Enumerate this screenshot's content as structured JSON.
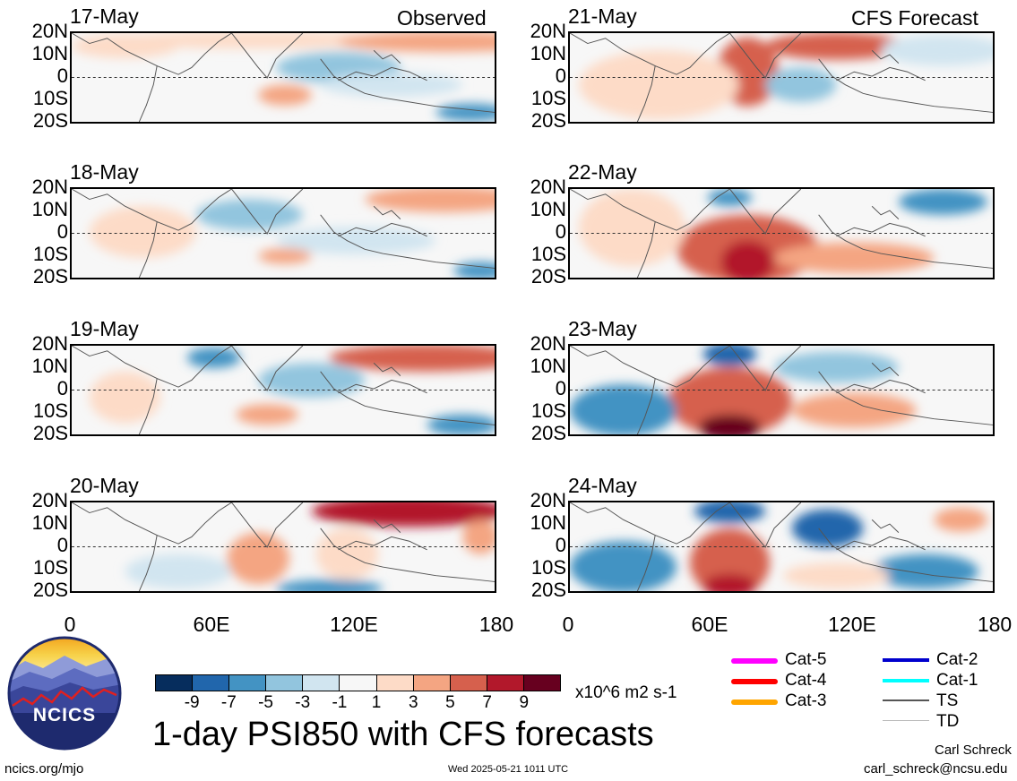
{
  "headers": {
    "left": "Observed",
    "right": "CFS Forecast"
  },
  "panels_left": [
    {
      "date": "17-May"
    },
    {
      "date": "18-May"
    },
    {
      "date": "19-May"
    },
    {
      "date": "20-May"
    }
  ],
  "panels_right": [
    {
      "date": "21-May"
    },
    {
      "date": "22-May"
    },
    {
      "date": "23-May"
    },
    {
      "date": "24-May"
    }
  ],
  "lat_labels": [
    "20N",
    "10N",
    "0",
    "10S",
    "20S"
  ],
  "lon_labels": [
    "0",
    "60E",
    "120E",
    "180"
  ],
  "colorbar": {
    "colors": [
      "#062d5d",
      "#2166ac",
      "#4393c3",
      "#92c5de",
      "#d1e5f0",
      "#f7f7f7",
      "#fddbc7",
      "#f4a582",
      "#d6604d",
      "#b2182b",
      "#67001f"
    ],
    "labels": [
      "-9",
      "-7",
      "-5",
      "-3",
      "-1",
      "1",
      "3",
      "5",
      "7",
      "9"
    ],
    "units": "x10^6 m2 s-1"
  },
  "legend": {
    "left": [
      {
        "label": "Cat-5",
        "color": "#ff00ff"
      },
      {
        "label": "Cat-4",
        "color": "#ff0000"
      },
      {
        "label": "Cat-3",
        "color": "#ffa500"
      }
    ],
    "right": [
      {
        "label": "Cat-2",
        "color": "#0000cd"
      },
      {
        "label": "Cat-1",
        "color": "#00ffff"
      },
      {
        "label": "TS",
        "color": "#555555"
      },
      {
        "label": "TD",
        "color": "#bbbbbb"
      }
    ]
  },
  "title": "1-day PSI850 with CFS forecasts",
  "logo_text": "NCICS",
  "footer": {
    "url": "ncics.org/mjo",
    "timestamp": "Wed 2025-05-21 1011 UTC",
    "author": "Carl Schreck",
    "email": "carl_schreck@ncsu.edu"
  }
}
